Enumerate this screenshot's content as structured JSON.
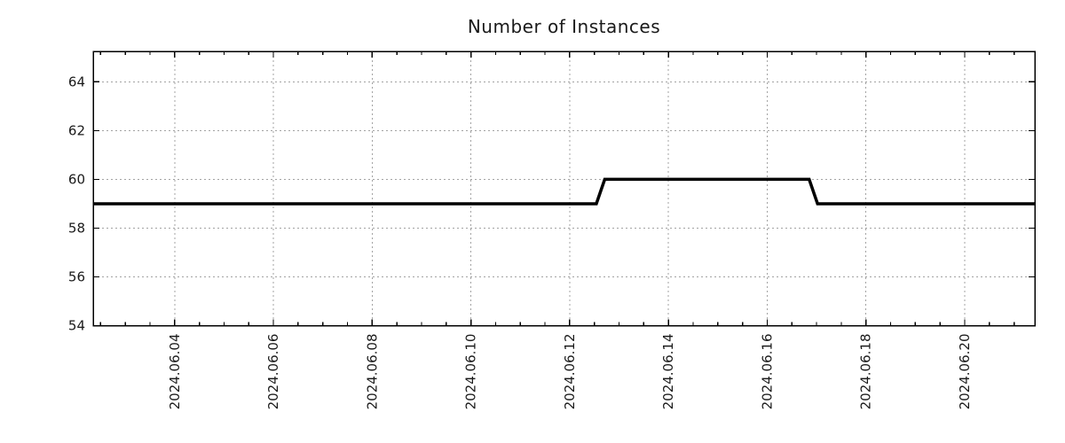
{
  "page": {
    "background_color": "#ffffff"
  },
  "chart_data": {
    "type": "line",
    "title": "Number of Instances",
    "xlabel": "",
    "ylabel": "",
    "legend": {
      "visible": false
    },
    "grid": {
      "visible": true,
      "style": "dotted",
      "color": "#a3a3a3"
    },
    "axis_color": "#000000",
    "tick_text_color": "#1a1a1a",
    "title_text_color": "#1a1a1a",
    "x_axis": {
      "unit": "date (fractional day of 2024-06)",
      "range": [
        2.35,
        21.42
      ],
      "major_ticks": [
        4,
        6,
        8,
        10,
        12,
        14,
        16,
        18,
        20
      ],
      "major_tick_labels": [
        "2024.06.04",
        "2024.06.06",
        "2024.06.08",
        "2024.06.10",
        "2024.06.12",
        "2024.06.14",
        "2024.06.16",
        "2024.06.18",
        "2024.06.20"
      ],
      "minor_tick_step": 0.5,
      "label_rotation_deg": 90,
      "ticks_mirrored_top": true
    },
    "y_axis": {
      "range": [
        54,
        65.25
      ],
      "major_ticks": [
        54,
        56,
        58,
        60,
        62,
        64
      ],
      "major_tick_labels": [
        "54",
        "56",
        "58",
        "60",
        "62",
        "64"
      ],
      "ticks_mirrored_right": true
    },
    "series": [
      {
        "name": "Number of Instances",
        "color": "#000000",
        "line_width": 3.5,
        "points": [
          {
            "x": 2.35,
            "y": 59
          },
          {
            "x": 12.54,
            "y": 59
          },
          {
            "x": 12.71,
            "y": 60
          },
          {
            "x": 16.85,
            "y": 60
          },
          {
            "x": 17.02,
            "y": 59
          },
          {
            "x": 21.42,
            "y": 59
          }
        ]
      }
    ]
  }
}
